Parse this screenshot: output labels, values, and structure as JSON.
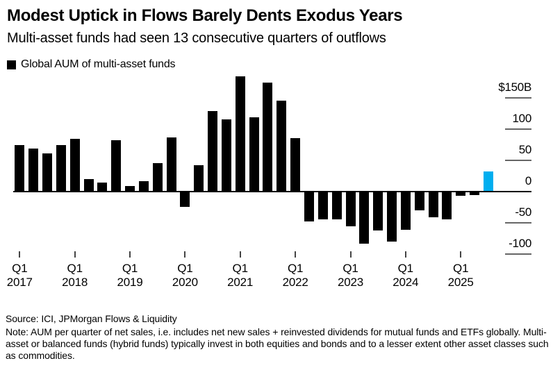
{
  "header": {
    "title": "Modest Uptick in Flows Barely Dents Exodus Years",
    "subtitle": "Multi-asset funds had seen 13 consecutive quarters of outflows"
  },
  "legend": {
    "label": "Global AUM of multi-asset funds",
    "swatch_color": "#000000"
  },
  "chart_data": {
    "type": "bar",
    "title": "Modest Uptick in Flows Barely Dents Exodus Years",
    "subtitle": "Multi-asset funds had seen 13 consecutive quarters of outflows",
    "series_name": "Global AUM of multi-asset funds",
    "unit": "billions of US dollars per quarter",
    "categories": [
      "Q1 2017",
      "Q2 2017",
      "Q3 2017",
      "Q4 2017",
      "Q1 2018",
      "Q2 2018",
      "Q3 2018",
      "Q4 2018",
      "Q1 2019",
      "Q2 2019",
      "Q3 2019",
      "Q4 2019",
      "Q1 2020",
      "Q2 2020",
      "Q3 2020",
      "Q4 2020",
      "Q1 2021",
      "Q2 2021",
      "Q3 2021",
      "Q4 2021",
      "Q1 2022",
      "Q2 2022",
      "Q3 2022",
      "Q4 2022",
      "Q1 2023",
      "Q2 2023",
      "Q3 2023",
      "Q4 2023",
      "Q1 2024",
      "Q2 2024",
      "Q3 2024",
      "Q4 2024",
      "Q1 2025",
      "Q2 2025",
      "Q3 2025"
    ],
    "values": [
      74,
      69,
      61,
      74,
      84,
      20,
      14,
      82,
      9,
      17,
      46,
      87,
      -24,
      42,
      129,
      116,
      185,
      119,
      175,
      146,
      86,
      -48,
      -44,
      -44,
      -55,
      -83,
      -62,
      -80,
      -61,
      -30,
      -41,
      -44,
      -7,
      -6,
      32
    ],
    "bar_color": "#000000",
    "highlight_index": 34,
    "highlight_color": "#00aeef",
    "ylim": [
      -110,
      190
    ],
    "grid": "right-side tick dashes only",
    "legend_position": "top-left",
    "y_axis": {
      "ticks": [
        {
          "label": "$150B",
          "value": 150
        },
        {
          "label": "100",
          "value": 100
        },
        {
          "label": "50",
          "value": 50
        },
        {
          "label": "0",
          "value": 0
        },
        {
          "label": "-50",
          "value": -50
        },
        {
          "label": "-100",
          "value": -100
        }
      ]
    },
    "x_axis": {
      "ticks": [
        {
          "top": "Q1",
          "bottom": "2017",
          "index": 0
        },
        {
          "top": "Q1",
          "bottom": "2018",
          "index": 4
        },
        {
          "top": "Q1",
          "bottom": "2019",
          "index": 8
        },
        {
          "top": "Q1",
          "bottom": "2020",
          "index": 12
        },
        {
          "top": "Q1",
          "bottom": "2021",
          "index": 16
        },
        {
          "top": "Q1",
          "bottom": "2022",
          "index": 20
        },
        {
          "top": "Q1",
          "bottom": "2023",
          "index": 24
        },
        {
          "top": "Q1",
          "bottom": "2024",
          "index": 28
        },
        {
          "top": "Q1",
          "bottom": "2025",
          "index": 32
        }
      ]
    }
  },
  "footer": {
    "source": "Source: ICI, JPMorgan Flows & Liquidity",
    "note": "Note: AUM per quarter of net sales, i.e. includes net new sales + reinvested dividends for mutual funds and ETFs globally. Multi-asset or balanced funds (hybrid funds) typically invest in both equities and bonds and to a lesser extent other asset classes such as commodities."
  }
}
